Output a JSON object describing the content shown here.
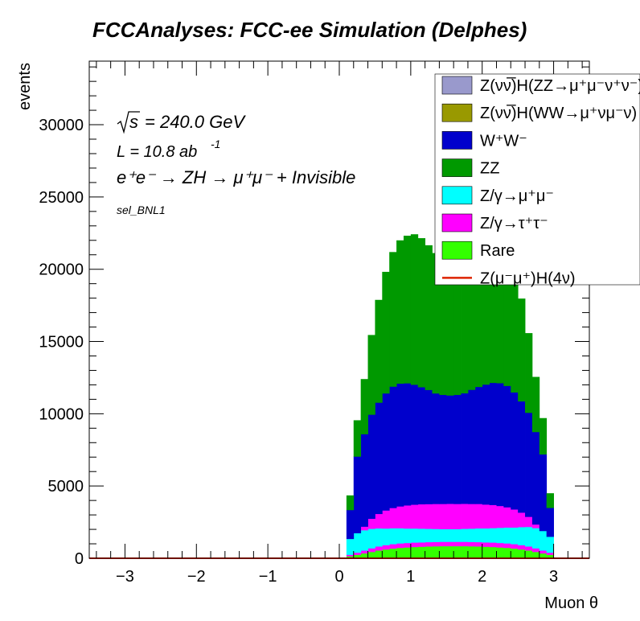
{
  "chart_data": {
    "type": "bar",
    "stacked": true,
    "title": "FCCAnalyses: FCC-ee Simulation (Delphes)",
    "xlabel": "Muon θ",
    "ylabel": "events",
    "xlim": [
      -3.5,
      3.5
    ],
    "ylim": [
      0,
      34400
    ],
    "xticks": [
      "−3",
      "−2",
      "−1",
      "0",
      "1",
      "2",
      "3"
    ],
    "yticks": [
      "0",
      "5000",
      "10000",
      "15000",
      "20000",
      "25000",
      "30000"
    ],
    "annotations": {
      "sqrt_s": "= 240.0 GeV",
      "lumi_pre": "L = 10.8 ab",
      "lumi_exp": "-1",
      "process": "e⁺e⁻ → ZH → μ⁺μ⁻ + Invisible",
      "selection": "sel_BNL1"
    },
    "legend_placement": "top-right",
    "bin_edges": [
      0.1,
      0.2,
      0.3,
      0.4,
      0.5,
      0.6,
      0.7,
      0.8,
      0.9,
      1.0,
      1.1,
      1.2,
      1.3,
      1.4,
      1.5,
      1.6,
      1.7,
      1.8,
      1.9,
      2.0,
      2.1,
      2.2,
      2.3,
      2.4,
      2.5,
      2.6,
      2.7,
      2.8,
      2.9,
      3.0
    ],
    "series": [
      {
        "name": "Rare",
        "legend": "Rare",
        "color": "#33ff00",
        "values": [
          150,
          250,
          350,
          450,
          550,
          620,
          680,
          730,
          760,
          790,
          810,
          830,
          840,
          850,
          850,
          850,
          850,
          840,
          830,
          810,
          790,
          760,
          730,
          680,
          620,
          550,
          450,
          350,
          250
        ]
      },
      {
        "name": "Z/γ→τ⁺τ⁻",
        "legend": "Z/γ→τ⁺τ⁻",
        "color": "#ff00ff",
        "values": [
          100,
          150,
          200,
          250,
          280,
          300,
          310,
          310,
          310,
          310,
          300,
          300,
          300,
          300,
          300,
          300,
          300,
          300,
          300,
          300,
          310,
          310,
          310,
          310,
          300,
          280,
          250,
          200,
          150
        ]
      },
      {
        "name": "Z/γ→μ⁺μ⁻",
        "legend": "Z/γ→μ⁺μ⁻",
        "color": "#00ffff",
        "values": [
          1100,
          1350,
          1400,
          1350,
          1250,
          1150,
          1100,
          1050,
          1000,
          970,
          950,
          920,
          900,
          880,
          880,
          880,
          900,
          920,
          950,
          970,
          1000,
          1050,
          1100,
          1150,
          1250,
          1350,
          1400,
          1350,
          1100
        ]
      },
      {
        "name": "Z/γ→τ⁺τ⁻",
        "legend": "Z/γ→τ⁺τ⁻",
        "color": "#ff00ff",
        "values": [
          0,
          0,
          250,
          700,
          1000,
          1250,
          1400,
          1510,
          1600,
          1650,
          1690,
          1710,
          1730,
          1740,
          1750,
          1740,
          1730,
          1710,
          1690,
          1650,
          1600,
          1510,
          1400,
          1250,
          1000,
          700,
          250,
          0,
          0
        ]
      },
      {
        "name": "W⁺W⁻",
        "legend": "W⁺W⁻",
        "color": "#0000cc",
        "values": [
          2000,
          5300,
          6400,
          7200,
          7700,
          8100,
          8400,
          8500,
          8450,
          8300,
          8100,
          7900,
          7650,
          7550,
          7500,
          7550,
          7650,
          7900,
          8100,
          8300,
          8450,
          8500,
          8400,
          8100,
          7700,
          7200,
          6400,
          5300,
          2000
        ]
      },
      {
        "name": "ZZ",
        "legend": "ZZ",
        "color": "#009900",
        "values": [
          1000,
          2500,
          3800,
          5500,
          7100,
          8400,
          9300,
          9900,
          10200,
          10400,
          10300,
          10000,
          9700,
          9400,
          9300,
          9400,
          9700,
          10000,
          10300,
          10400,
          10200,
          9900,
          9300,
          8400,
          7100,
          5500,
          3800,
          2500,
          1000
        ]
      },
      {
        "name": "Z(νν̅)H(WW→μ⁺νμ⁻ν)",
        "legend": "Z(νν̅)H(WW→μ⁺νμ⁻ν)",
        "color": "#999900",
        "values": [
          0,
          0,
          0,
          0,
          0,
          0,
          0,
          0,
          0,
          0,
          0,
          0,
          0,
          0,
          0,
          0,
          0,
          0,
          0,
          0,
          0,
          0,
          0,
          0,
          0,
          0,
          0,
          0,
          0
        ]
      },
      {
        "name": "Z(νν̅)H(ZZ→μ⁺μ⁻νν)",
        "legend": "Z(νν̅)H(ZZ→μ⁺μ⁻ν⁺ν⁻)",
        "color": "#9999cc",
        "values": [
          0,
          0,
          0,
          0,
          0,
          0,
          0,
          0,
          0,
          0,
          0,
          0,
          0,
          0,
          0,
          0,
          0,
          0,
          0,
          0,
          0,
          0,
          0,
          0,
          0,
          0,
          0,
          0,
          0
        ]
      }
    ],
    "signal": {
      "name": "Z(μ⁻μ⁺)H(4ν)",
      "color": "#dd2200",
      "value": 0
    },
    "legend_entries": [
      {
        "label": "Z(νν̅)H(ZZ→μ⁺μ⁻ν⁺ν⁻)",
        "color": "#9999cc",
        "kind": "box"
      },
      {
        "label": "Z(νν̅)H(WW→μ⁺νμ⁻ν)",
        "color": "#999900",
        "kind": "box"
      },
      {
        "label": "W⁺W⁻",
        "color": "#0000cc",
        "kind": "box"
      },
      {
        "label": "ZZ",
        "color": "#009900",
        "kind": "box"
      },
      {
        "label": "Z/γ→μ⁺μ⁻",
        "color": "#00ffff",
        "kind": "box"
      },
      {
        "label": "Z/γ→τ⁺τ⁻",
        "color": "#ff00ff",
        "kind": "box"
      },
      {
        "label": "Rare",
        "color": "#33ff00",
        "kind": "box"
      },
      {
        "label": "Z(μ⁻μ⁺)H(4ν)",
        "color": "#dd2200",
        "kind": "line"
      }
    ]
  }
}
